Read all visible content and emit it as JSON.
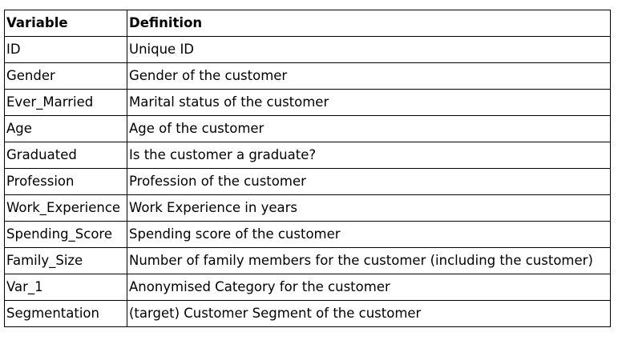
{
  "table": {
    "headers": [
      "Variable",
      "Definition"
    ],
    "rows": [
      [
        "ID",
        "Unique ID"
      ],
      [
        "Gender",
        "Gender of the customer"
      ],
      [
        "Ever_Married",
        "Marital status of the customer"
      ],
      [
        "Age",
        "Age of the customer"
      ],
      [
        "Graduated",
        "Is the customer a graduate?"
      ],
      [
        "Profession",
        "Profession of the customer"
      ],
      [
        "Work_Experience",
        "Work Experience in years"
      ],
      [
        "Spending_Score",
        "Spending score of the customer"
      ],
      [
        "Family_Size",
        "Number of family members for the customer (including the customer)"
      ],
      [
        "Var_1",
        "Anonymised Category for the customer"
      ],
      [
        "Segmentation",
        "(target) Customer Segment of the customer"
      ]
    ]
  }
}
